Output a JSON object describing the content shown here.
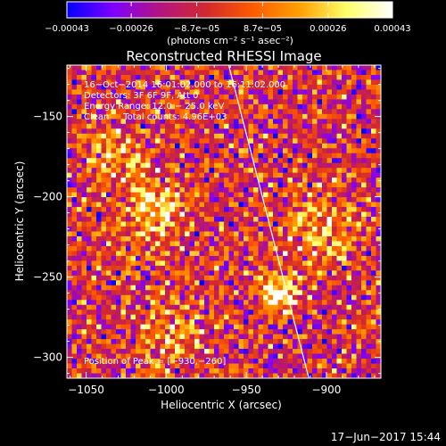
{
  "chart_data": {
    "type": "heatmap",
    "title": "Reconstructed RHESSI Image",
    "xlabel": "Heliocentric X (arcsec)",
    "ylabel": "Heliocentric Y (arcsec)",
    "xlim": [
      -1062,
      -866
    ],
    "ylim": [
      -313,
      -118
    ],
    "x_ticks": [
      {
        "value": -1050,
        "label": "−1050"
      },
      {
        "value": -1000,
        "label": "−1000"
      },
      {
        "value": -950,
        "label": "−950"
      },
      {
        "value": -900,
        "label": "−900"
      }
    ],
    "y_ticks": [
      {
        "value": -150,
        "label": "−150"
      },
      {
        "value": -200,
        "label": "−200"
      },
      {
        "value": -250,
        "label": "−250"
      },
      {
        "value": -300,
        "label": "−300"
      }
    ],
    "colorbar": {
      "min": -0.00043,
      "max": 0.00043,
      "ticks": [
        {
          "value": -0.00043,
          "label": "−0.00043"
        },
        {
          "value": -0.00026,
          "label": "−0.00026"
        },
        {
          "value": -8.7e-05,
          "label": "−8.7e−05"
        },
        {
          "value": 8.7e-05,
          "label": "8.7e−05"
        },
        {
          "value": 0.00026,
          "label": "0.00026"
        },
        {
          "value": 0.00043,
          "label": "0.00043"
        }
      ],
      "unit_label": "(photons cm⁻² s⁻¹ asec⁻²)",
      "colors": [
        "#0000ff",
        "#7f00ff",
        "#b4147f",
        "#d3292e",
        "#ff5a00",
        "#ffa000",
        "#ffff66",
        "#ffffff"
      ]
    },
    "annotations": [
      "16−Oct−2014 16:01:02.000 to 16:11:02.000",
      "Detectors: 3F 6F 9F, Att 0",
      "Energy Range: 12.0 − 25.0 keV",
      "Clean     Total counts: 4.96E+03"
    ],
    "peak_label": "Position of Peak = [−930,−260]",
    "peak": [
      -930,
      -260
    ],
    "limb_line": [
      [
        -961,
        -118
      ],
      [
        -911,
        -313
      ]
    ],
    "footer": "17−Jun−2017 15:44"
  }
}
